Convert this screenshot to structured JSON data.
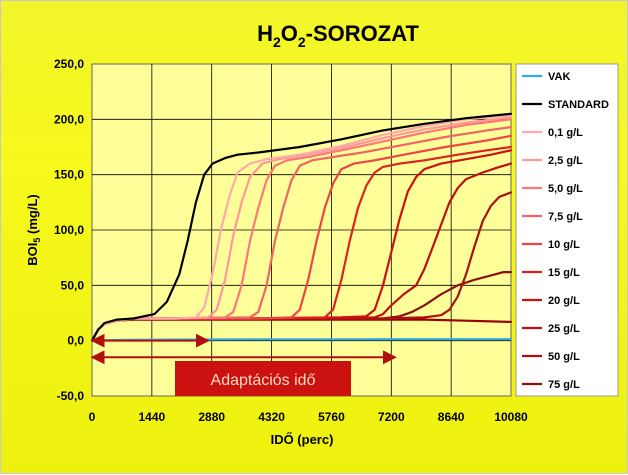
{
  "chart_data": {
    "type": "line",
    "title": {
      "base1": "H",
      "sub1": "2",
      "base2": "O",
      "sub2": "2",
      "rest": "-SOROZAT"
    },
    "xlabel": "IDŐ (perc)",
    "ylabel": {
      "base": "BOI",
      "sub": "5",
      "rest": " (mg/L)"
    },
    "xlim": [
      0,
      10080
    ],
    "ylim": [
      -50,
      250
    ],
    "x_ticks": [
      "0",
      "1440",
      "2880",
      "4320",
      "5760",
      "7200",
      "8640",
      "10080"
    ],
    "x_tick_values": [
      0,
      1440,
      2880,
      4320,
      5760,
      7200,
      8640,
      10080
    ],
    "y_ticks": [
      "-50,0",
      "0,0",
      "50,0",
      "100,0",
      "150,0",
      "200,0",
      "250,0"
    ],
    "y_tick_values": [
      -50,
      0,
      50,
      100,
      150,
      200,
      250
    ],
    "grid": true,
    "plot_background": "#ffff99",
    "annotation": {
      "label": "Adaptációs idő",
      "color": "#cc1111",
      "arrow_color": "#b01010",
      "arrows": [
        {
          "x_start": 0,
          "x_end": 2800,
          "y": 0
        },
        {
          "x_start": 0,
          "x_end": 7300,
          "y": -15
        }
      ]
    },
    "series": [
      {
        "name": "VAK",
        "color": "#33aadd",
        "x": [
          0,
          200,
          500,
          1000,
          2000,
          4000,
          6000,
          8000,
          10080
        ],
        "y": [
          0,
          0.3,
          0.5,
          0.8,
          1.0,
          1.2,
          1.2,
          1.3,
          1.3
        ]
      },
      {
        "name": "STANDARD",
        "color": "#000000",
        "x": [
          0,
          150,
          300,
          600,
          1000,
          1500,
          1800,
          2100,
          2300,
          2500,
          2700,
          2900,
          3200,
          3500,
          4000,
          5000,
          6000,
          7000,
          8000,
          9000,
          10080
        ],
        "y": [
          0,
          10,
          16,
          19,
          20,
          24,
          35,
          60,
          90,
          125,
          150,
          160,
          165,
          168,
          170,
          175,
          182,
          190,
          196,
          201,
          205
        ]
      },
      {
        "name": "0,1 g/L",
        "color": "#ffaaaa",
        "x": [
          0,
          150,
          300,
          600,
          1000,
          2000,
          2500,
          2700,
          2900,
          3100,
          3300,
          3500,
          3800,
          4200,
          5000,
          6000,
          7000,
          8000,
          9000,
          10080
        ],
        "y": [
          0,
          10,
          15,
          18,
          20,
          20,
          21,
          30,
          60,
          100,
          130,
          152,
          160,
          164,
          168,
          176,
          186,
          194,
          200,
          204
        ]
      },
      {
        "name": "2,5 g/L",
        "color": "#ff9999",
        "x": [
          0,
          150,
          300,
          600,
          1000,
          2000,
          2800,
          3000,
          3200,
          3400,
          3600,
          3800,
          4100,
          4500,
          5000,
          6000,
          7000,
          8000,
          9000,
          10080
        ],
        "y": [
          0,
          10,
          15,
          18,
          20,
          20,
          21,
          28,
          55,
          95,
          125,
          148,
          160,
          164,
          167,
          174,
          183,
          191,
          197,
          202
        ]
      },
      {
        "name": "5,0 g/L",
        "color": "#ff7777",
        "x": [
          0,
          150,
          300,
          600,
          1000,
          2000,
          3200,
          3400,
          3600,
          3800,
          4000,
          4200,
          4400,
          4700,
          5200,
          6000,
          7000,
          8000,
          9000,
          10080
        ],
        "y": [
          0,
          10,
          15,
          18,
          20,
          20,
          21,
          26,
          50,
          90,
          120,
          145,
          158,
          163,
          166,
          172,
          180,
          188,
          195,
          200
        ]
      },
      {
        "name": "7,5 g/L",
        "color": "#ee6666",
        "x": [
          0,
          150,
          300,
          600,
          1000,
          2000,
          3800,
          4000,
          4200,
          4400,
          4600,
          4800,
          5000,
          5300,
          5800,
          6500,
          7500,
          8500,
          9500,
          10080
        ],
        "y": [
          0,
          10,
          15,
          18,
          20,
          20,
          21,
          26,
          50,
          90,
          120,
          145,
          158,
          163,
          166,
          170,
          177,
          184,
          190,
          193
        ]
      },
      {
        "name": "10 g/L",
        "color": "#ee4444",
        "x": [
          0,
          150,
          300,
          600,
          1000,
          2000,
          4000,
          4800,
          5000,
          5200,
          5400,
          5600,
          5800,
          6000,
          6300,
          6800,
          7500,
          8500,
          9500,
          10080
        ],
        "y": [
          0,
          10,
          15,
          18,
          20,
          20,
          20,
          21,
          28,
          55,
          90,
          120,
          142,
          155,
          160,
          163,
          168,
          175,
          181,
          185
        ]
      },
      {
        "name": "15 g/L",
        "color": "#dd2222",
        "x": [
          0,
          150,
          300,
          600,
          1000,
          2000,
          4000,
          5600,
          5800,
          6000,
          6200,
          6400,
          6600,
          6800,
          7000,
          7400,
          8000,
          8800,
          9500,
          10080
        ],
        "y": [
          0,
          10,
          15,
          18,
          20,
          20,
          20,
          21,
          28,
          55,
          90,
          120,
          140,
          152,
          157,
          160,
          163,
          168,
          172,
          175
        ]
      },
      {
        "name": "20 g/L",
        "color": "#cc1111",
        "x": [
          0,
          150,
          300,
          600,
          1000,
          2000,
          4000,
          6000,
          6600,
          6800,
          7000,
          7200,
          7400,
          7600,
          7800,
          8000,
          8400,
          9000,
          9600,
          10080
        ],
        "y": [
          0,
          10,
          15,
          18,
          20,
          20,
          20,
          21,
          22,
          28,
          50,
          80,
          110,
          135,
          148,
          155,
          160,
          164,
          168,
          172
        ]
      },
      {
        "name": "25 g/L",
        "color": "#bb1111",
        "x": [
          0,
          150,
          300,
          600,
          1000,
          2000,
          4000,
          6000,
          6800,
          7000,
          7200,
          7500,
          7800,
          8000,
          8200,
          8400,
          8600,
          8800,
          9000,
          9400,
          9800,
          10080
        ],
        "y": [
          0,
          10,
          15,
          18,
          20,
          20,
          20,
          20,
          21,
          24,
          32,
          42,
          50,
          65,
          85,
          105,
          125,
          138,
          146,
          152,
          157,
          160
        ]
      },
      {
        "name": "50 g/L",
        "color": "#aa1111",
        "x": [
          0,
          150,
          300,
          600,
          1000,
          2000,
          4000,
          6000,
          7000,
          8000,
          8400,
          8600,
          8800,
          9000,
          9200,
          9400,
          9600,
          9800,
          10080
        ],
        "y": [
          0,
          10,
          15,
          18,
          20,
          20,
          20,
          20,
          20,
          21,
          23,
          28,
          40,
          60,
          85,
          108,
          122,
          130,
          134
        ]
      },
      {
        "name": "75 g/L",
        "color": "#8b1111",
        "x": [
          0,
          150,
          300,
          600,
          1000,
          2000,
          4000,
          6000,
          7000,
          7400,
          7700,
          8000,
          8400,
          8800,
          9200,
          9600,
          9900,
          10080
        ],
        "y": [
          0,
          10,
          15,
          18,
          20,
          20,
          20,
          20,
          20,
          22,
          26,
          32,
          42,
          50,
          55,
          59,
          62,
          62
        ]
      },
      {
        "name": "",
        "color": "#990000",
        "x": [
          0,
          150,
          300,
          600,
          1000,
          2000,
          4000,
          6000,
          8000,
          9000,
          10080
        ],
        "y": [
          0,
          10,
          15,
          18,
          19,
          19,
          19,
          19,
          19,
          18,
          17
        ]
      }
    ]
  }
}
